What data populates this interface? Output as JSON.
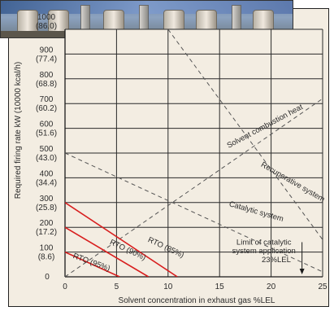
{
  "chart_data": {
    "type": "line",
    "title": "",
    "xlabel": "Solvent concentration in exhaust gas  %LEL",
    "ylabel": "Required firing rate  kW (10000 kcal/h)",
    "xlim": [
      0,
      25
    ],
    "ylim": [
      0,
      1000
    ],
    "grid": true,
    "x_ticks": [
      "0",
      "5",
      "10",
      "15",
      "20",
      "25"
    ],
    "x_tick_values": [
      0,
      5,
      10,
      15,
      20,
      25
    ],
    "y_ticks": [
      {
        "value": 0,
        "label": "0",
        "sub": ""
      },
      {
        "value": 100,
        "label": "100",
        "sub": "(8.6)"
      },
      {
        "value": 200,
        "label": "200",
        "sub": "(17.2)"
      },
      {
        "value": 300,
        "label": "300",
        "sub": "(25.8)"
      },
      {
        "value": 400,
        "label": "400",
        "sub": "(34.4)"
      },
      {
        "value": 500,
        "label": "500",
        "sub": "(43.0)"
      },
      {
        "value": 600,
        "label": "600",
        "sub": "(51.6)"
      },
      {
        "value": 700,
        "label": "700",
        "sub": "(60.2)"
      },
      {
        "value": 800,
        "label": "800",
        "sub": "(68.8)"
      },
      {
        "value": 900,
        "label": "900",
        "sub": "(77.4)"
      },
      {
        "value": 1000,
        "label": "1000",
        "sub": "(86.0)"
      }
    ],
    "series": [
      {
        "name": "Solvent combustion heat",
        "style": "dashed",
        "color": "#555555",
        "x": [
          0,
          25
        ],
        "y": [
          0,
          720
        ],
        "label_x": 19.5,
        "label_y": 600,
        "label_angle": -28
      },
      {
        "name": "Recuperative system",
        "style": "dashed",
        "color": "#555555",
        "x": [
          10,
          25
        ],
        "y": [
          1000,
          150
        ],
        "label_x": 22,
        "label_y": 375,
        "label_angle": 30
      },
      {
        "name": "Catalytic system",
        "style": "dashed",
        "color": "#555555",
        "x": [
          0,
          25
        ],
        "y": [
          500,
          20
        ],
        "label_x": 18.5,
        "label_y": 255,
        "label_angle": 16
      },
      {
        "name": "RTO (95%)",
        "style": "solid",
        "color": "#d81e1e",
        "x": [
          0,
          5.3
        ],
        "y": [
          100,
          0
        ],
        "label_x": 2.5,
        "label_y": 50,
        "label_angle": 20
      },
      {
        "name": "RTO (90%)",
        "style": "solid",
        "color": "#d81e1e",
        "x": [
          0,
          8.1
        ],
        "y": [
          200,
          0
        ],
        "label_x": 6,
        "label_y": 100,
        "label_angle": 25
      },
      {
        "name": "RTO (85%)",
        "style": "solid",
        "color": "#d81e1e",
        "x": [
          0,
          10.9
        ],
        "y": [
          300,
          0
        ],
        "label_x": 9.7,
        "label_y": 110,
        "label_angle": 25
      }
    ],
    "annotations": [
      {
        "text": "Limit of catalytic",
        "x": 19.3,
        "y": 130
      },
      {
        "text": "system application",
        "x": 19.3,
        "y": 95
      },
      {
        "text": "23%LEL",
        "x": 20.5,
        "y": 60
      }
    ],
    "limit_line": {
      "x": 23,
      "y_from": 140,
      "y_to": 10
    }
  }
}
